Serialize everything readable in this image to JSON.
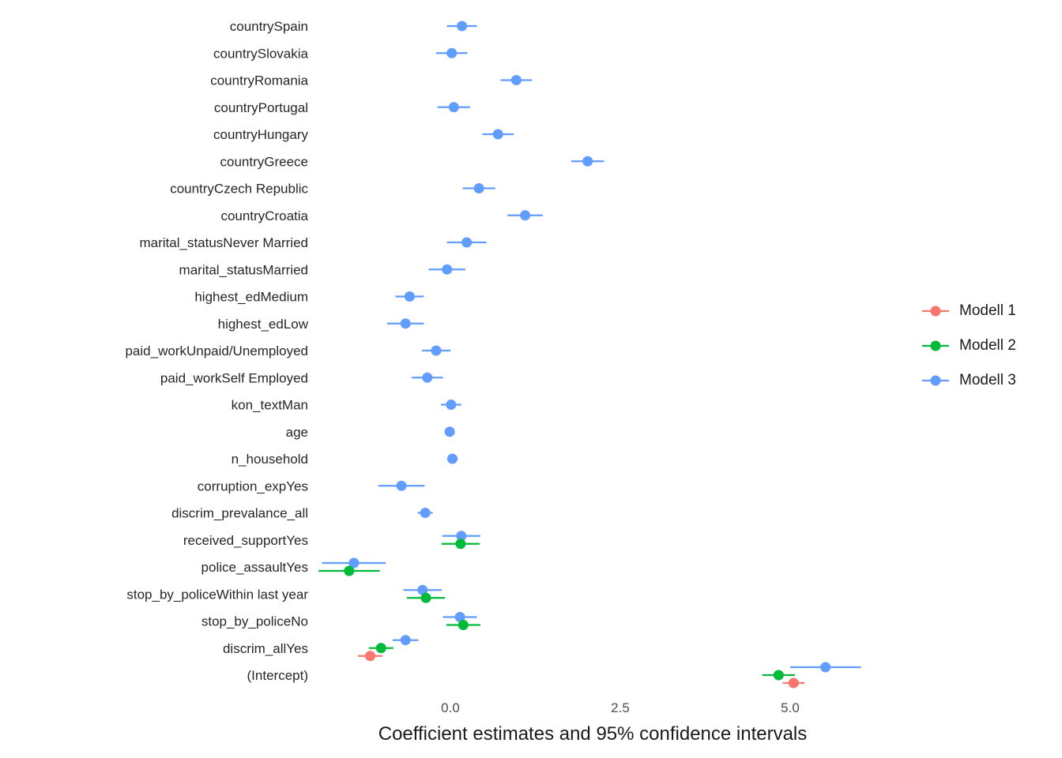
{
  "chart_data": {
    "type": "scatter",
    "subtype": "coefficient-dot-whisker",
    "title": "",
    "xlabel": "Coefficient estimates and 95% confidence intervals",
    "ylabel": "",
    "xlim": [
      -2.0,
      6.45
    ],
    "grid": false,
    "legend_position": "right",
    "x_ticks": [
      {
        "value": 0,
        "label": "0.0"
      },
      {
        "value": 2.5,
        "label": "2.5"
      },
      {
        "value": 5,
        "label": "5.0"
      }
    ],
    "series": [
      {
        "name": "Modell 1",
        "color": "#F8766D"
      },
      {
        "name": "Modell 2",
        "color": "#00BA38"
      },
      {
        "name": "Modell 3",
        "color": "#619CFF"
      }
    ],
    "rows": [
      {
        "label": "countrySpain",
        "points": [
          {
            "model": 3,
            "est": 0.17,
            "lo": -0.05,
            "hi": 0.39
          }
        ]
      },
      {
        "label": "countrySlovakia",
        "points": [
          {
            "model": 3,
            "est": 0.02,
            "lo": -0.21,
            "hi": 0.25
          }
        ]
      },
      {
        "label": "countryRomania",
        "points": [
          {
            "model": 3,
            "est": 0.97,
            "lo": 0.74,
            "hi": 1.2
          }
        ]
      },
      {
        "label": "countryPortugal",
        "points": [
          {
            "model": 3,
            "est": 0.05,
            "lo": -0.19,
            "hi": 0.29
          }
        ]
      },
      {
        "label": "countryHungary",
        "points": [
          {
            "model": 3,
            "est": 0.7,
            "lo": 0.47,
            "hi": 0.93
          }
        ]
      },
      {
        "label": "countryGreece",
        "points": [
          {
            "model": 3,
            "est": 2.02,
            "lo": 1.78,
            "hi": 2.26
          }
        ]
      },
      {
        "label": "countryCzech Republic",
        "points": [
          {
            "model": 3,
            "est": 0.42,
            "lo": 0.18,
            "hi": 0.66
          }
        ]
      },
      {
        "label": "countryCroatia",
        "points": [
          {
            "model": 3,
            "est": 1.1,
            "lo": 0.84,
            "hi": 1.36
          }
        ]
      },
      {
        "label": "marital_statusNever Married",
        "points": [
          {
            "model": 3,
            "est": 0.24,
            "lo": -0.05,
            "hi": 0.53
          }
        ]
      },
      {
        "label": "marital_statusMarried",
        "points": [
          {
            "model": 3,
            "est": -0.05,
            "lo": -0.32,
            "hi": 0.22
          }
        ]
      },
      {
        "label": "highest_edMedium",
        "points": [
          {
            "model": 3,
            "est": -0.6,
            "lo": -0.81,
            "hi": -0.39
          }
        ]
      },
      {
        "label": "highest_edLow",
        "points": [
          {
            "model": 3,
            "est": -0.66,
            "lo": -0.93,
            "hi": -0.39
          }
        ]
      },
      {
        "label": "paid_workUnpaid/Unemployed",
        "points": [
          {
            "model": 3,
            "est": -0.21,
            "lo": -0.42,
            "hi": 0.0
          }
        ]
      },
      {
        "label": "paid_workSelf Employed",
        "points": [
          {
            "model": 3,
            "est": -0.34,
            "lo": -0.57,
            "hi": -0.11
          }
        ]
      },
      {
        "label": "kon_textMan",
        "points": [
          {
            "model": 3,
            "est": 0.01,
            "lo": -0.14,
            "hi": 0.16
          }
        ]
      },
      {
        "label": "age",
        "points": [
          {
            "model": 3,
            "est": -0.01,
            "lo": -0.05,
            "hi": 0.03
          }
        ]
      },
      {
        "label": "n_household",
        "points": [
          {
            "model": 3,
            "est": 0.03,
            "lo": -0.05,
            "hi": 0.11
          }
        ]
      },
      {
        "label": "corruption_expYes",
        "points": [
          {
            "model": 3,
            "est": -0.72,
            "lo": -1.06,
            "hi": -0.38
          }
        ]
      },
      {
        "label": "discrim_prevalance_all",
        "points": [
          {
            "model": 3,
            "est": -0.37,
            "lo": -0.48,
            "hi": -0.26
          }
        ]
      },
      {
        "label": "received_supportYes",
        "points": [
          {
            "model": 3,
            "est": 0.16,
            "lo": -0.12,
            "hi": 0.44
          },
          {
            "model": 2,
            "est": 0.15,
            "lo": -0.13,
            "hi": 0.43
          }
        ]
      },
      {
        "label": "police_assaultYes",
        "points": [
          {
            "model": 3,
            "est": -1.42,
            "lo": -1.89,
            "hi": -0.95
          },
          {
            "model": 2,
            "est": -1.49,
            "lo": -1.94,
            "hi": -1.04
          }
        ]
      },
      {
        "label": "stop_by_policeWithin last year",
        "points": [
          {
            "model": 3,
            "est": -0.41,
            "lo": -0.69,
            "hi": -0.13
          },
          {
            "model": 2,
            "est": -0.36,
            "lo": -0.64,
            "hi": -0.08
          }
        ]
      },
      {
        "label": "stop_by_policeNo",
        "points": [
          {
            "model": 3,
            "est": 0.14,
            "lo": -0.11,
            "hi": 0.39
          },
          {
            "model": 2,
            "est": 0.19,
            "lo": -0.06,
            "hi": 0.44
          }
        ]
      },
      {
        "label": "discrim_allYes",
        "points": [
          {
            "model": 3,
            "est": -0.66,
            "lo": -0.85,
            "hi": -0.47
          },
          {
            "model": 2,
            "est": -1.02,
            "lo": -1.2,
            "hi": -0.84
          },
          {
            "model": 1,
            "est": -1.18,
            "lo": -1.36,
            "hi": -1.0
          }
        ]
      },
      {
        "label": "(Intercept)",
        "points": [
          {
            "model": 3,
            "est": 5.52,
            "lo": 5.0,
            "hi": 6.04
          },
          {
            "model": 2,
            "est": 4.83,
            "lo": 4.59,
            "hi": 5.07
          },
          {
            "model": 1,
            "est": 5.05,
            "lo": 4.89,
            "hi": 5.21
          }
        ]
      }
    ]
  }
}
